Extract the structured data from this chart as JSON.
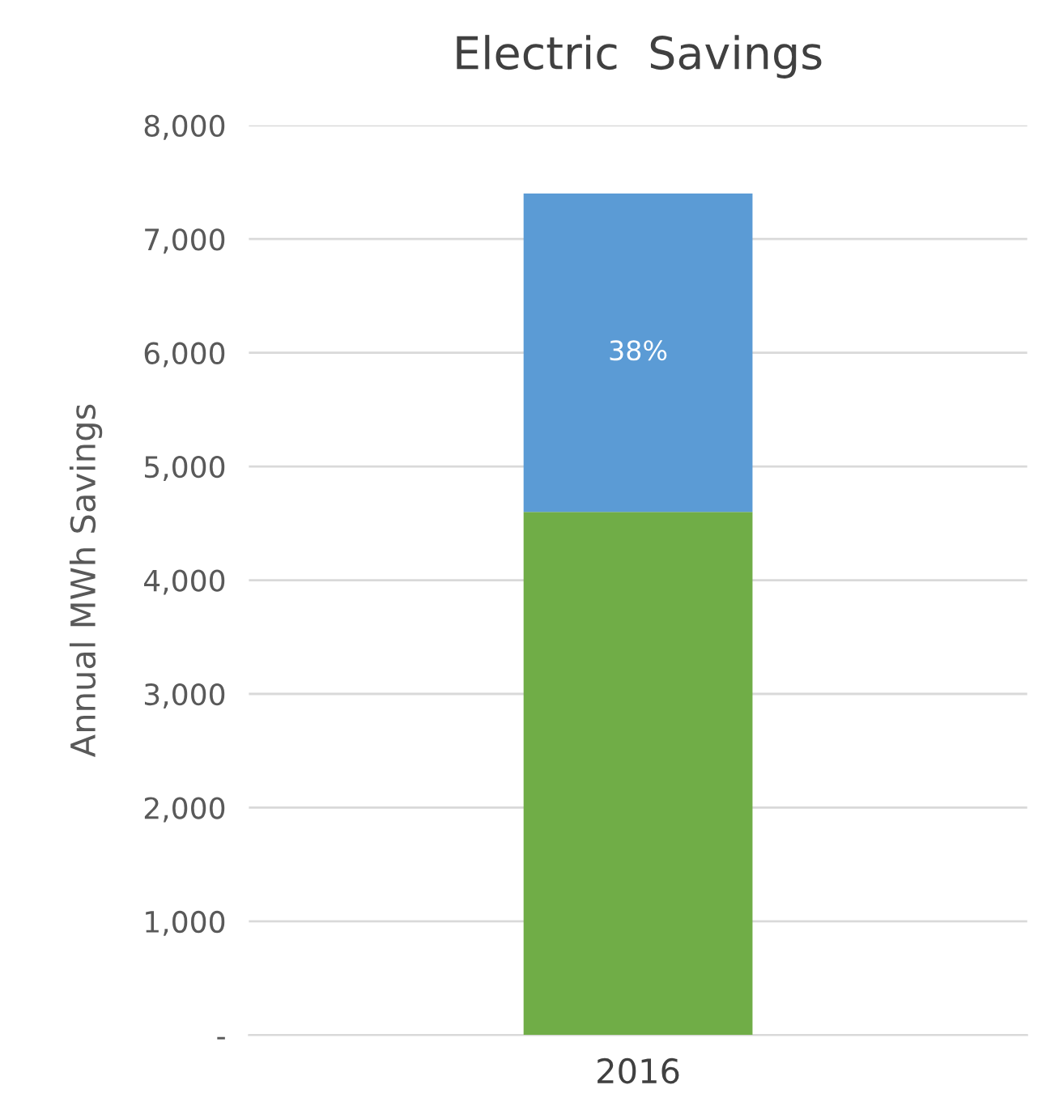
{
  "chart_data": {
    "type": "bar",
    "title": "Electric  Savings",
    "ylabel": "Annual MWh Savings",
    "categories": [
      "2016"
    ],
    "stacked": true,
    "series": [
      {
        "color": "#70ad47",
        "values": [
          4600
        ]
      },
      {
        "color": "#5b9bd5",
        "values": [
          2800
        ]
      }
    ],
    "annotations": [
      "38%"
    ],
    "ylim": [
      0,
      8000
    ],
    "yticks": [
      {
        "value": 0,
        "label": "-"
      },
      {
        "value": 1000,
        "label": "1,000"
      },
      {
        "value": 2000,
        "label": "2,000"
      },
      {
        "value": 3000,
        "label": "3,000"
      },
      {
        "value": 4000,
        "label": "4,000"
      },
      {
        "value": 5000,
        "label": "5,000"
      },
      {
        "value": 6000,
        "label": "6,000"
      },
      {
        "value": 7000,
        "label": "7,000"
      },
      {
        "value": 8000,
        "label": "8,000"
      }
    ],
    "grid": "y"
  }
}
